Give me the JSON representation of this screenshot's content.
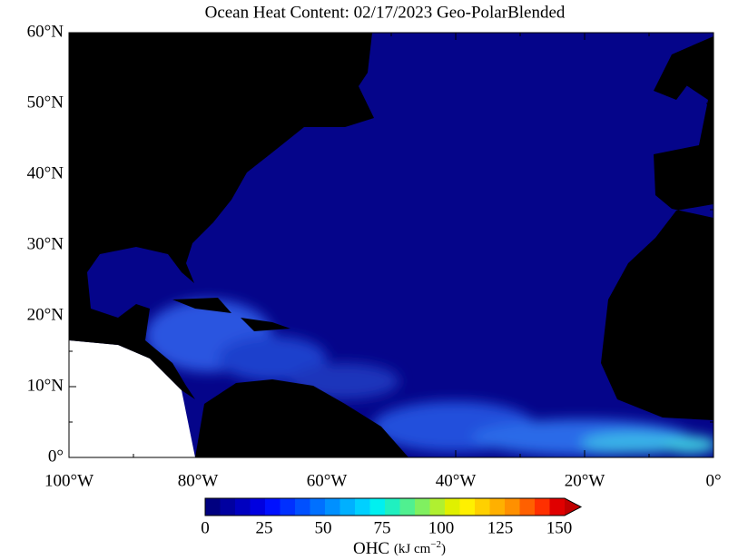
{
  "header": {
    "title": "Ocean Heat Content: 02/17/2023 Geo-PolarBlended"
  },
  "map": {
    "lat_labels": [
      "60°N",
      "50°N",
      "40°N",
      "30°N",
      "20°N",
      "10°N",
      "0°"
    ],
    "lon_labels": [
      "100°W",
      "80°W",
      "60°W",
      "40°W",
      "20°W",
      "0°"
    ]
  },
  "colorbar": {
    "ticks": [
      "0",
      "25",
      "50",
      "75",
      "100",
      "125",
      "150"
    ],
    "label": "OHC",
    "units": "(kJ cm",
    "exponent": "−2",
    "units_close": ")"
  }
}
